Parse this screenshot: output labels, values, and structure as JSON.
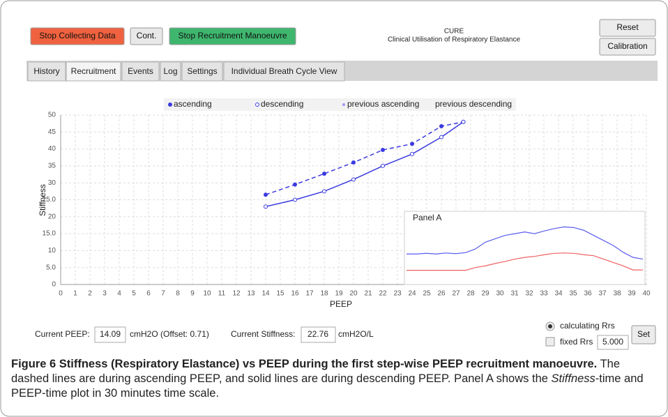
{
  "header": {
    "buttons": [
      "Stop Collecting Data",
      "Cont.",
      "Stop Recruitment Manoeuvre"
    ],
    "app_title": "CURE",
    "app_subtitle": "Clinical Utilisation of Respiratory Elastance",
    "side_buttons": [
      "Reset",
      "Calibration"
    ]
  },
  "tabs": [
    "History",
    "Recruitment",
    "Events",
    "Log",
    "Settings",
    "Individual Breath Cycle View"
  ],
  "chart_data": {
    "type": "line",
    "x_label": "PEEP",
    "y_label": "Stiffness",
    "xlim": [
      0,
      40
    ],
    "xticks": [
      0,
      1,
      2,
      3,
      4,
      5,
      6,
      7,
      8,
      9,
      10,
      11,
      12,
      13,
      14,
      15,
      16,
      17,
      18,
      19,
      20,
      21,
      22,
      23,
      24,
      25,
      26,
      27,
      28,
      29,
      30,
      31,
      32,
      33,
      34,
      35,
      36,
      37,
      38,
      39,
      40
    ],
    "ylim": [
      0,
      50
    ],
    "yticks": [
      0,
      {
        "value": 5,
        "label": "5.0"
      },
      10,
      {
        "value": 15,
        "label": "15.0"
      },
      20,
      {
        "value": 25,
        "label": "25.0"
      },
      30,
      35,
      40,
      45,
      50
    ],
    "grid": true,
    "series": [
      {
        "name": "ascending",
        "color": "#3a3ae0",
        "dashed": true,
        "marker": "filled",
        "x": [
          14,
          16,
          18,
          20,
          22,
          24,
          26,
          27.5
        ],
        "values": [
          26.5,
          29.5,
          32.7,
          36,
          39.7,
          41.5,
          46.7,
          48
        ]
      },
      {
        "name": "descending",
        "color": "#3a3ae0",
        "dashed": false,
        "marker": "open",
        "x": [
          14,
          16,
          18,
          20,
          22,
          24,
          26,
          27.5
        ],
        "values": [
          23,
          25,
          27.5,
          31,
          35,
          38.5,
          43.5,
          48
        ]
      }
    ],
    "extra_legend": [
      "previous ascending",
      "previous descending"
    ],
    "panel": {
      "title": "Panel A",
      "series": [
        {
          "color": "#5b5bf0",
          "values": [
            9,
            9,
            9.2,
            9,
            9.3,
            9.1,
            9.4,
            10.5,
            12.5,
            13.5,
            14.5,
            15,
            15.5,
            15,
            15.8,
            16.5,
            17,
            16.8,
            16,
            14.5,
            13,
            11.5,
            9.5,
            8,
            7.5
          ]
        },
        {
          "color": "#f06060",
          "values": [
            4.2,
            4.2,
            4.2,
            4.2,
            4.2,
            4.2,
            4.2,
            5,
            5.5,
            6.2,
            6.8,
            7.5,
            8,
            8.3,
            8.8,
            9.2,
            9.3,
            9.2,
            8.8,
            8.5,
            7.5,
            6.5,
            5.5,
            4.3,
            4.3
          ]
        }
      ]
    }
  },
  "controls": {
    "peep_label": "Current PEEP:",
    "peep_value": "14.09",
    "peep_unit": "cmH2O (Offset: 0.71)",
    "stiff_label": "Current Stiffness:",
    "stiff_value": "22.76",
    "stiff_unit": "cmH2O/L",
    "radio": "calculating Rrs",
    "check": "fixed Rrs",
    "rrs_value": "5.000",
    "set": "Set"
  },
  "caption": {
    "label": "Figure 6",
    "title": "Stiffness (Respiratory Elastance) vs PEEP during the first step-wise PEEP recruitment manoeuvre.",
    "text1": "The dashed lines are during ascending PEEP, and solid lines are during descending PEEP. Panel A shows the ",
    "italic": "Stiffness",
    "text2": "-time and PEEP-time plot in 30 minutes time scale."
  }
}
